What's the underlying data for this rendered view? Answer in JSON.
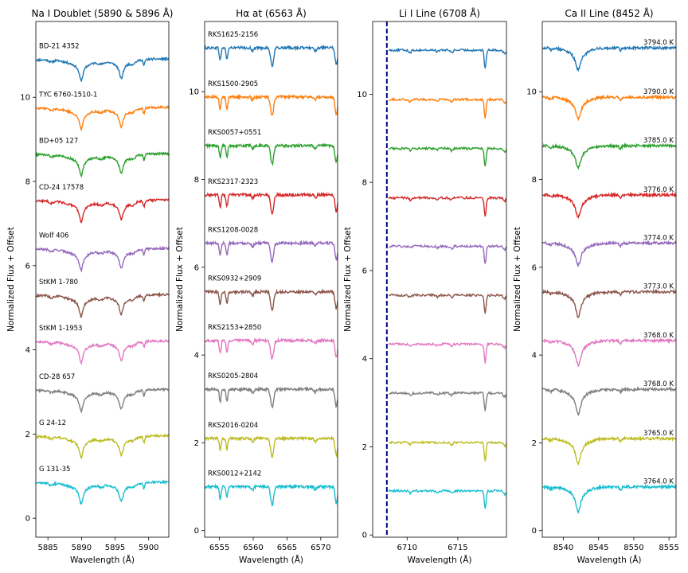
{
  "colors": [
    "#1f77b4",
    "#ff7f0e",
    "#2ca02c",
    "#d62728",
    "#9467bd",
    "#8c564b",
    "#e377c2",
    "#7f7f7f",
    "#bcbd22",
    "#17becf"
  ],
  "ylabel": "Normalized Flux + Offset",
  "xlabel": "Wavelength (Å)",
  "chart_data": [
    {
      "type": "line",
      "title": "Na I Doublet (5890 & 5896 Å)",
      "xlabel": "Wavelength (Å)",
      "ylabel": "Normalized Flux + Offset",
      "xlim": [
        5883.2,
        5903.0
      ],
      "ylim": [
        -0.45,
        11.8
      ],
      "xticks": [
        5885,
        5890,
        5895,
        5900
      ],
      "yticks": [
        0,
        2,
        4,
        6,
        8,
        10
      ],
      "labels_mode": "left",
      "series": [
        {
          "name": "BD-21 4352",
          "offset": 10.9
        },
        {
          "name": "TYC 6760-1510-1",
          "offset": 9.75
        },
        {
          "name": "BD+05 127",
          "offset": 8.65
        },
        {
          "name": "CD-24 17578",
          "offset": 7.55
        },
        {
          "name": "Wolf 406",
          "offset": 6.4
        },
        {
          "name": "StKM 1-780",
          "offset": 5.3
        },
        {
          "name": "StKM 1-1953",
          "offset": 4.2
        },
        {
          "name": "CD-28 657",
          "offset": 3.05
        },
        {
          "name": "G 24-12",
          "offset": 1.95
        },
        {
          "name": "G 131-35",
          "offset": 0.85
        }
      ]
    },
    {
      "type": "line",
      "title": "Hα at (6563 Å)",
      "xlabel": "Wavelength (Å)",
      "ylabel": "Normalized Flux + Offset",
      "xlim": [
        6552.8,
        6572.5
      ],
      "ylim": [
        -0.15,
        11.6
      ],
      "xticks": [
        6555,
        6560,
        6565,
        6570
      ],
      "yticks": [
        0,
        2,
        4,
        6,
        8,
        10
      ],
      "labels_mode": "left",
      "series": [
        {
          "name": "RKS1625-2156",
          "offset": 11.0
        },
        {
          "name": "RKS1500-2905",
          "offset": 9.88
        },
        {
          "name": "RKS0057+0551",
          "offset": 8.77
        },
        {
          "name": "RKS2317-2323",
          "offset": 7.65
        },
        {
          "name": "RKS1208-0028",
          "offset": 6.55
        },
        {
          "name": "RKS0932+2909",
          "offset": 5.44
        },
        {
          "name": "RKS2153+2850",
          "offset": 4.33
        },
        {
          "name": "RKS0205-2804",
          "offset": 3.22
        },
        {
          "name": "RKS2016-0204",
          "offset": 2.1
        },
        {
          "name": "RKS0012+2142",
          "offset": 1.0
        }
      ]
    },
    {
      "type": "line",
      "title": "Li I Line (6708 Å)",
      "xlabel": "Wavelength (Å)",
      "ylabel": "Normalized Flux + Offset",
      "xlim": [
        6706.6,
        6719.8
      ],
      "ylim": [
        -0.05,
        11.65
      ],
      "xticks": [
        6710,
        6715
      ],
      "yticks": [
        0,
        2,
        4,
        6,
        8,
        10
      ],
      "vline": 6708,
      "labels_mode": "none",
      "series": [
        {
          "name": "",
          "offset": 11.0
        },
        {
          "name": "",
          "offset": 9.88
        },
        {
          "name": "",
          "offset": 8.77
        },
        {
          "name": "",
          "offset": 7.65
        },
        {
          "name": "",
          "offset": 6.55
        },
        {
          "name": "",
          "offset": 5.44
        },
        {
          "name": "",
          "offset": 4.33
        },
        {
          "name": "",
          "offset": 3.22
        },
        {
          "name": "",
          "offset": 2.1
        },
        {
          "name": "",
          "offset": 1.0
        }
      ]
    },
    {
      "type": "line",
      "title": "Ca II Line (8452 Å)",
      "xlabel": "Wavelength (Å)",
      "ylabel": "Normalized Flux + Offset",
      "xlim": [
        8537.0,
        8556.0
      ],
      "ylim": [
        -0.15,
        11.6
      ],
      "xticks": [
        8540,
        8545,
        8550,
        8555
      ],
      "yticks": [
        0,
        2,
        4,
        6,
        8,
        10
      ],
      "labels_mode": "right",
      "series": [
        {
          "name": "3794.0 K",
          "offset": 11.0
        },
        {
          "name": "3790.0 K",
          "offset": 9.88
        },
        {
          "name": "3785.0 K",
          "offset": 8.77
        },
        {
          "name": "3776.0 K",
          "offset": 7.65
        },
        {
          "name": "3774.0 K",
          "offset": 6.55
        },
        {
          "name": "3773.0 K",
          "offset": 5.44
        },
        {
          "name": "3768.0 K",
          "offset": 4.33
        },
        {
          "name": "3768.0 K",
          "offset": 3.22
        },
        {
          "name": "3765.0 K",
          "offset": 2.1
        },
        {
          "name": "3764.0 K",
          "offset": 1.0
        }
      ]
    }
  ]
}
